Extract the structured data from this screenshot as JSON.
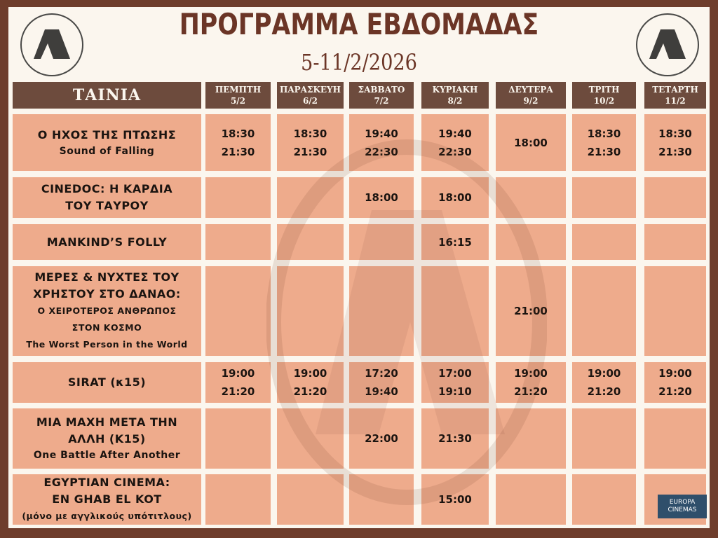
{
  "title": "ΠΡΟΓΡΑΜΜΑ ΕΒΔΟΜΑΔΑΣ",
  "dates": "5-11/2/2026",
  "logo": "cinema-logo-A",
  "colors": {
    "border": "#6e3d2c",
    "header": "#6d4b3d",
    "cell": "#eeab8c",
    "title": "#6b3526"
  },
  "header": {
    "film": "ΤΑΙΝΙΑ",
    "days": [
      {
        "day": "ΠΕΜΠΤΗ",
        "date": "5/2"
      },
      {
        "day": "ΠΑΡΑΣΚΕΥΗ",
        "date": "6/2"
      },
      {
        "day": "ΣΑΒΒΑΤΟ",
        "date": "7/2"
      },
      {
        "day": "ΚΥΡΙΑΚΗ",
        "date": "8/2"
      },
      {
        "day": "ΔΕΥΤΕΡΑ",
        "date": "9/2"
      },
      {
        "day": "ΤΡΙΤΗ",
        "date": "10/2"
      },
      {
        "day": "ΤΕΤΑΡΤΗ",
        "date": "11/2"
      }
    ]
  },
  "films": [
    {
      "lines": [
        "Ο ΗΧΟΣ ΤΗΣ ΠΤΩΣΗΣ",
        "Sound of Falling"
      ],
      "times": [
        [
          "18:30",
          "21:30"
        ],
        [
          "18:30",
          "21:30"
        ],
        [
          "19:40",
          "22:30"
        ],
        [
          "19:40",
          "22:30"
        ],
        [
          "18:00"
        ],
        [
          "18:30",
          "21:30"
        ],
        [
          "18:30",
          "21:30"
        ]
      ]
    },
    {
      "lines": [
        "CINEDOC: Η ΚΑΡΔΙΑ",
        "ΤΟΥ ΤΑΥΡΟΥ"
      ],
      "times": [
        [],
        [],
        [
          "18:00"
        ],
        [
          "18:00"
        ],
        [],
        [],
        []
      ]
    },
    {
      "lines": [
        "MANKIND’S FOLLY"
      ],
      "times": [
        [],
        [],
        [],
        [
          "16:15"
        ],
        [],
        [],
        []
      ]
    },
    {
      "lines": [
        "ΜΕΡΕΣ & ΝΥΧΤΕΣ ΤΟΥ",
        "ΧΡΗΣΤΟΥ ΣΤΟ ΔΑΝΑΟ:",
        "Ο ΧΕΙΡΟΤΕΡΟΣ ΑΝΘΡΩΠΟΣ",
        "ΣΤΟΝ ΚΟΣΜΟ",
        "The Worst Person in the World"
      ],
      "times": [
        [],
        [],
        [],
        [],
        [
          "21:00"
        ],
        [],
        []
      ]
    },
    {
      "lines": [
        "SIRAT (κ15)"
      ],
      "times": [
        [
          "19:00",
          "21:20"
        ],
        [
          "19:00",
          "21:20"
        ],
        [
          "17:20",
          "19:40"
        ],
        [
          "17:00",
          "19:10"
        ],
        [
          "19:00",
          "21:20"
        ],
        [
          "19:00",
          "21:20"
        ],
        [
          "19:00",
          "21:20"
        ]
      ]
    },
    {
      "lines": [
        "ΜΙΑ ΜΑΧΗ ΜΕΤΑ ΤΗΝ",
        "ΑΛΛΗ (Κ15)",
        "One Battle After Another"
      ],
      "times": [
        [],
        [],
        [
          "22:00"
        ],
        [
          "21:30"
        ],
        [],
        [],
        []
      ]
    },
    {
      "lines": [
        "EGYPTIAN CINEMA:",
        "EN GHAB EL KOT",
        "(μόνο με αγγλικούς υπότιτλους)"
      ],
      "times": [
        [],
        [],
        [],
        [
          "15:00"
        ],
        [],
        [],
        []
      ]
    }
  ],
  "badge": {
    "line1": "EUROPA",
    "line2": "CINEMAS"
  }
}
